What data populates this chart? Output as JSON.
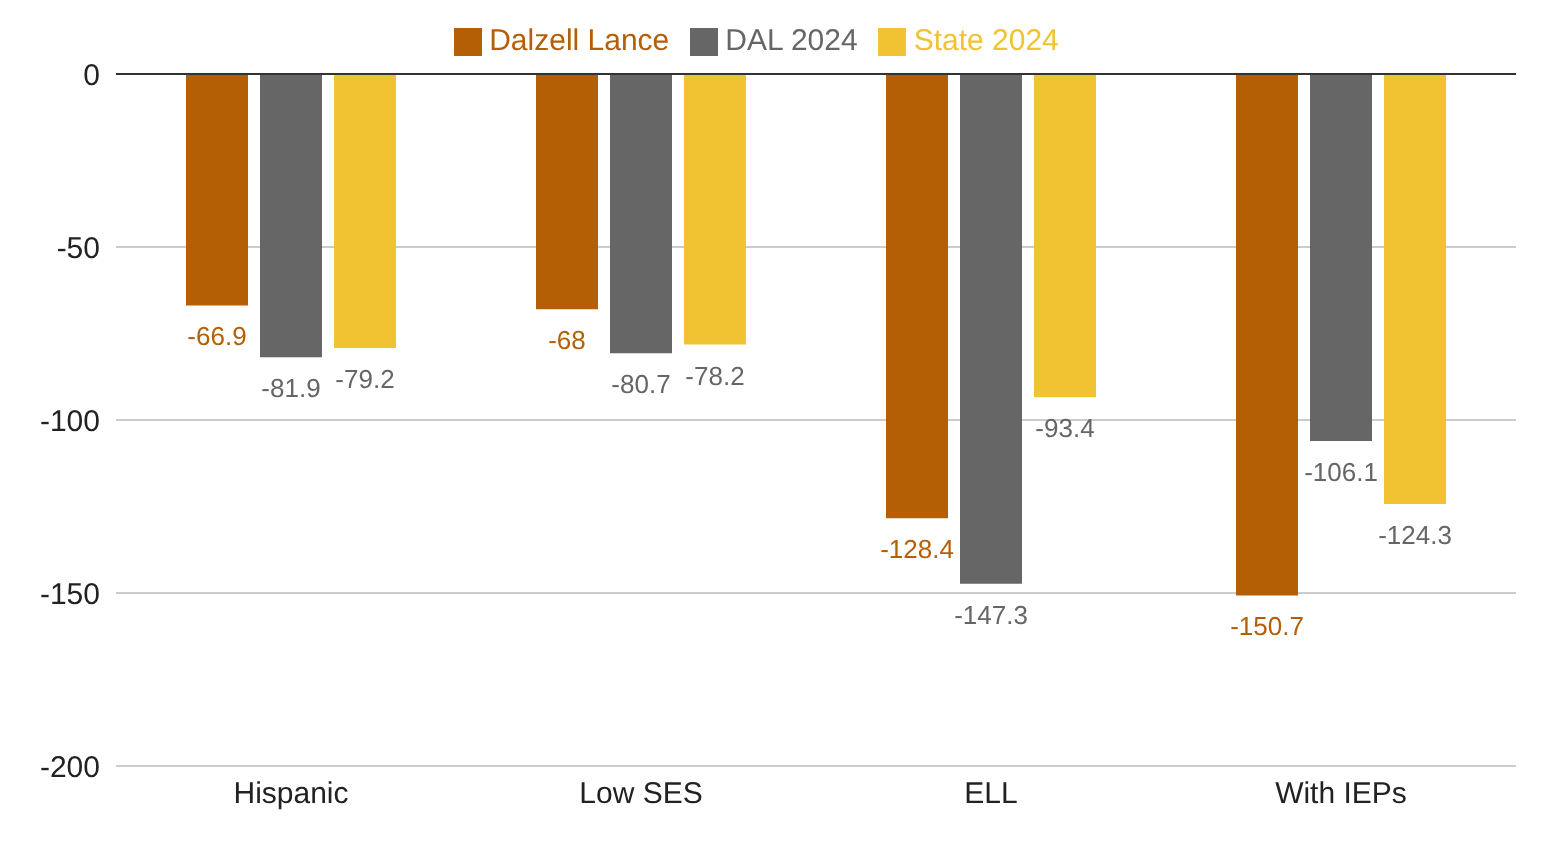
{
  "chart_data": {
    "type": "bar",
    "categories": [
      "Hispanic",
      "Low SES",
      "ELL",
      "With IEPs"
    ],
    "series": [
      {
        "name": "Dalzell Lance",
        "color": "#b45f06",
        "values": [
          -66.9,
          -68,
          -128.4,
          -150.7
        ]
      },
      {
        "name": "DAL 2024",
        "color": "#666666",
        "values": [
          -81.9,
          -80.7,
          -147.3,
          -106.1
        ]
      },
      {
        "name": "State 2024",
        "color": "#f1c232",
        "values": [
          -79.2,
          -78.2,
          -93.4,
          -124.3
        ]
      }
    ],
    "ylim": [
      -200,
      0
    ],
    "yticks": [
      -200,
      -150,
      -100,
      -50,
      0
    ],
    "grid": "y",
    "legend": "top",
    "data_labels": true,
    "ref_lines": [
      {
        "axis": "y",
        "value": 0,
        "color": "#333333"
      }
    ]
  }
}
